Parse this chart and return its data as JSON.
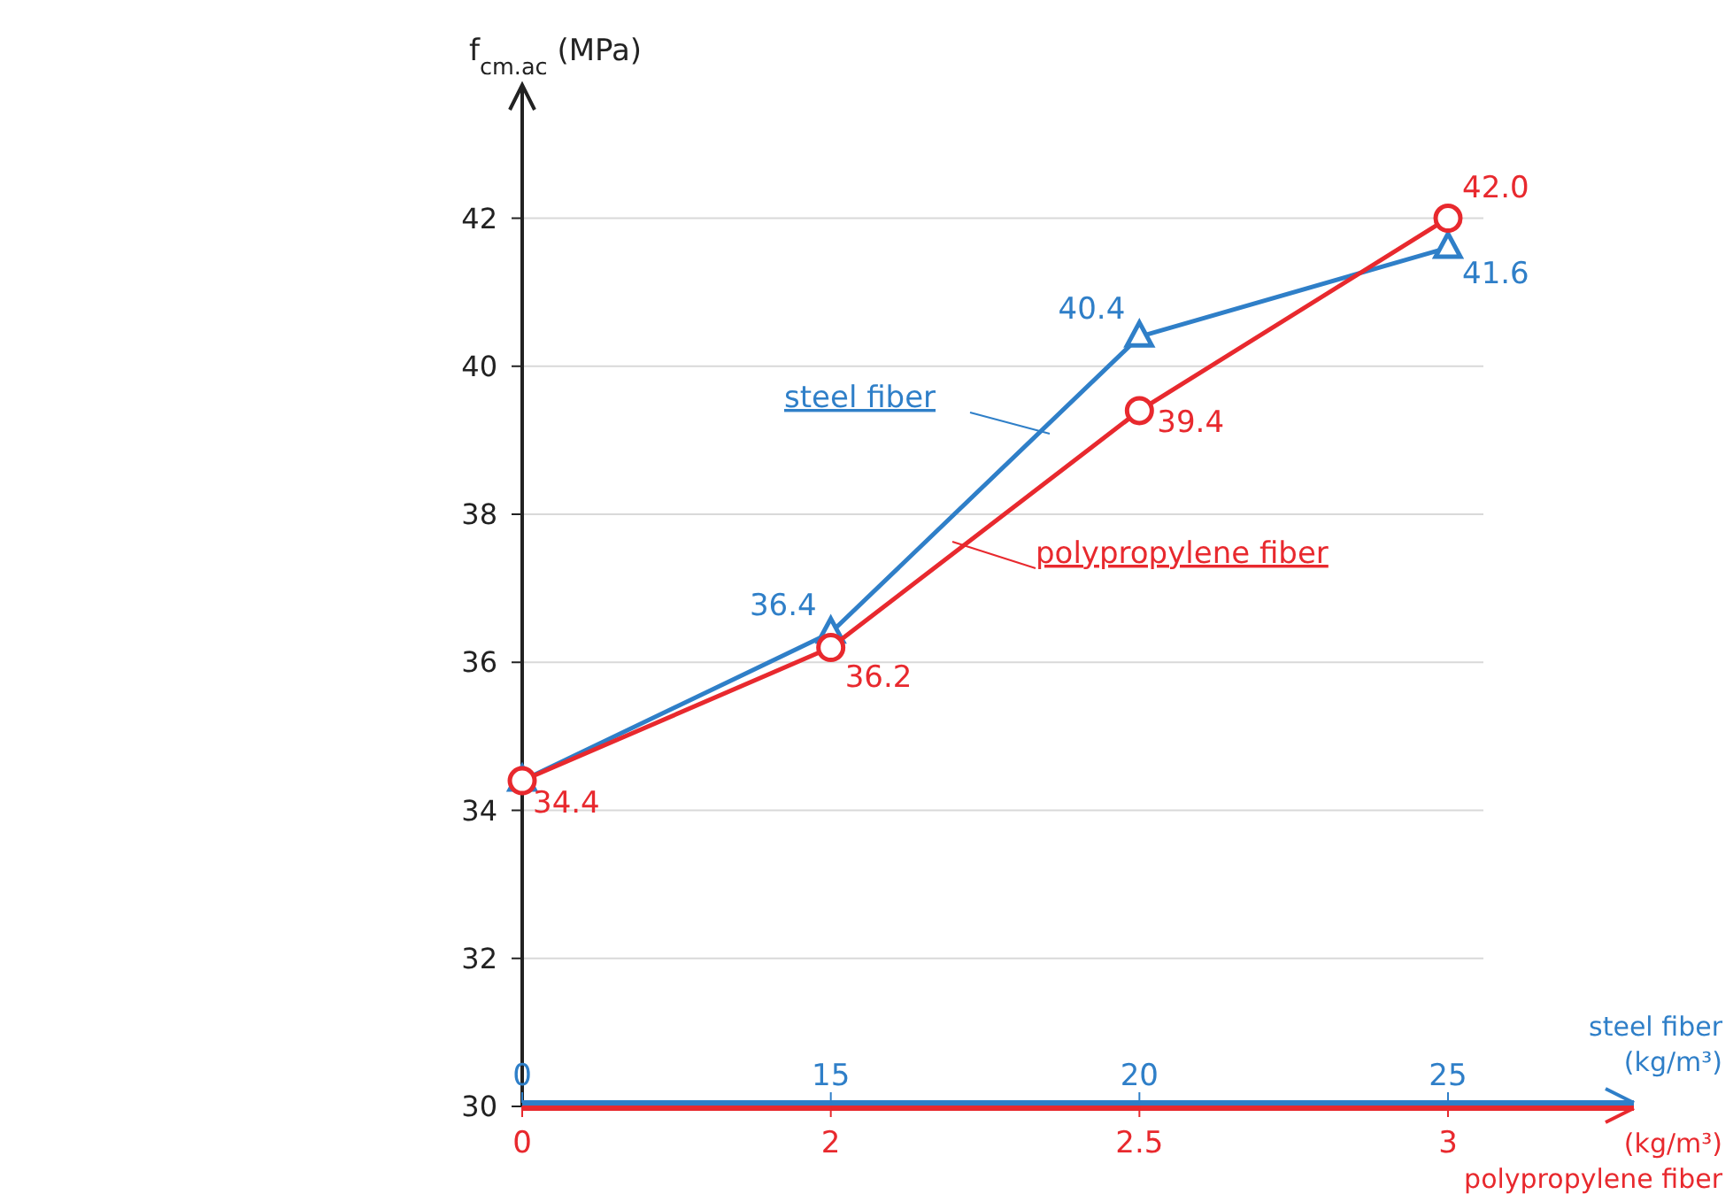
{
  "chart_data": {
    "type": "line",
    "ylabel": "f$_{cm.ac}$ (MPa)",
    "xlabel": "(kg/m³)\npolypropylene fiber",
    "x2label": "steel fiber\n(kg/m³)",
    "categories": [
      "0",
      "2",
      "2.5",
      "3"
    ],
    "annotations": [
      "0",
      "15",
      "20",
      "25"
    ],
    "ylim": [
      30,
      43.8
    ],
    "yticks": [
      30,
      32,
      34,
      36,
      38,
      40,
      42
    ],
    "grid": "y",
    "series": [
      {
        "name": "steel fiber",
        "color": "#2f7fc8",
        "marker": "triangle",
        "values": [
          34.4,
          36.4,
          40.4,
          41.6
        ],
        "value_labels": [
          null,
          "36.4",
          "40.4",
          "41.6"
        ]
      },
      {
        "name": "polypropylene fiber",
        "color": "#e8292e",
        "marker": "circle",
        "values": [
          34.4,
          36.2,
          39.4,
          42.0
        ],
        "value_labels": [
          "34.4",
          "36.2",
          "39.4",
          "42.0"
        ]
      }
    ]
  }
}
